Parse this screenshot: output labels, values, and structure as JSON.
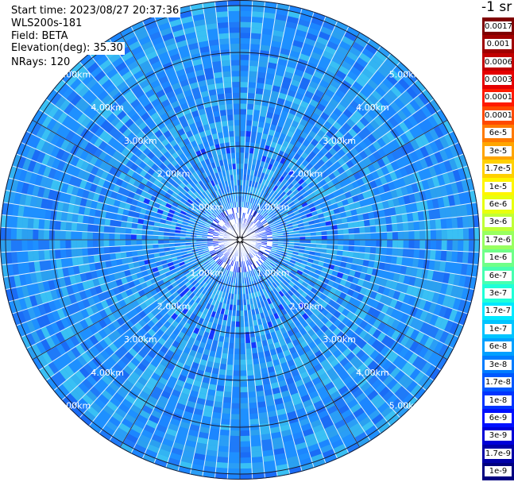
{
  "info": {
    "start_time": "Start time: 2023/08/27 20:37:36",
    "instrument": "WLS200s-181",
    "field": "Field: BETA",
    "elevation": "Elevation(deg): 35.30",
    "nrays": "NRays: 120"
  },
  "units_label": "-1 sr",
  "ring_labels": [
    "1.00km",
    "2.00km",
    "3.00km",
    "4.00km",
    "5.00km"
  ],
  "colorbar": {
    "labels": [
      "0.0017",
      "0.001",
      "0.0006",
      "0.0003",
      "0.00017",
      "0.0001",
      "6e-5",
      "3e-5",
      "1.7e-5",
      "1e-5",
      "6e-6",
      "3e-6",
      "1.7e-6",
      "1e-6",
      "6e-7",
      "3e-7",
      "1.7e-7",
      "1e-7",
      "6e-8",
      "3e-8",
      "1.7e-8",
      "1e-8",
      "6e-9",
      "3e-9",
      "1.7e-9",
      "1e-9"
    ],
    "colors": [
      "#7f0000",
      "#9f0000",
      "#c20000",
      "#e40000",
      "#ff1a00",
      "#ff4a00",
      "#ff7a00",
      "#ffa500",
      "#ffd000",
      "#fff500",
      "#e8ff0e",
      "#c0ff37",
      "#98ff60",
      "#6fff88",
      "#47ffb0",
      "#1fffd8",
      "#00e8ff",
      "#00c4ff",
      "#00a0ff",
      "#007cff",
      "#0058ff",
      "#0034ff",
      "#0010ff",
      "#0000d8",
      "#0000a8",
      "#000080"
    ]
  }
}
